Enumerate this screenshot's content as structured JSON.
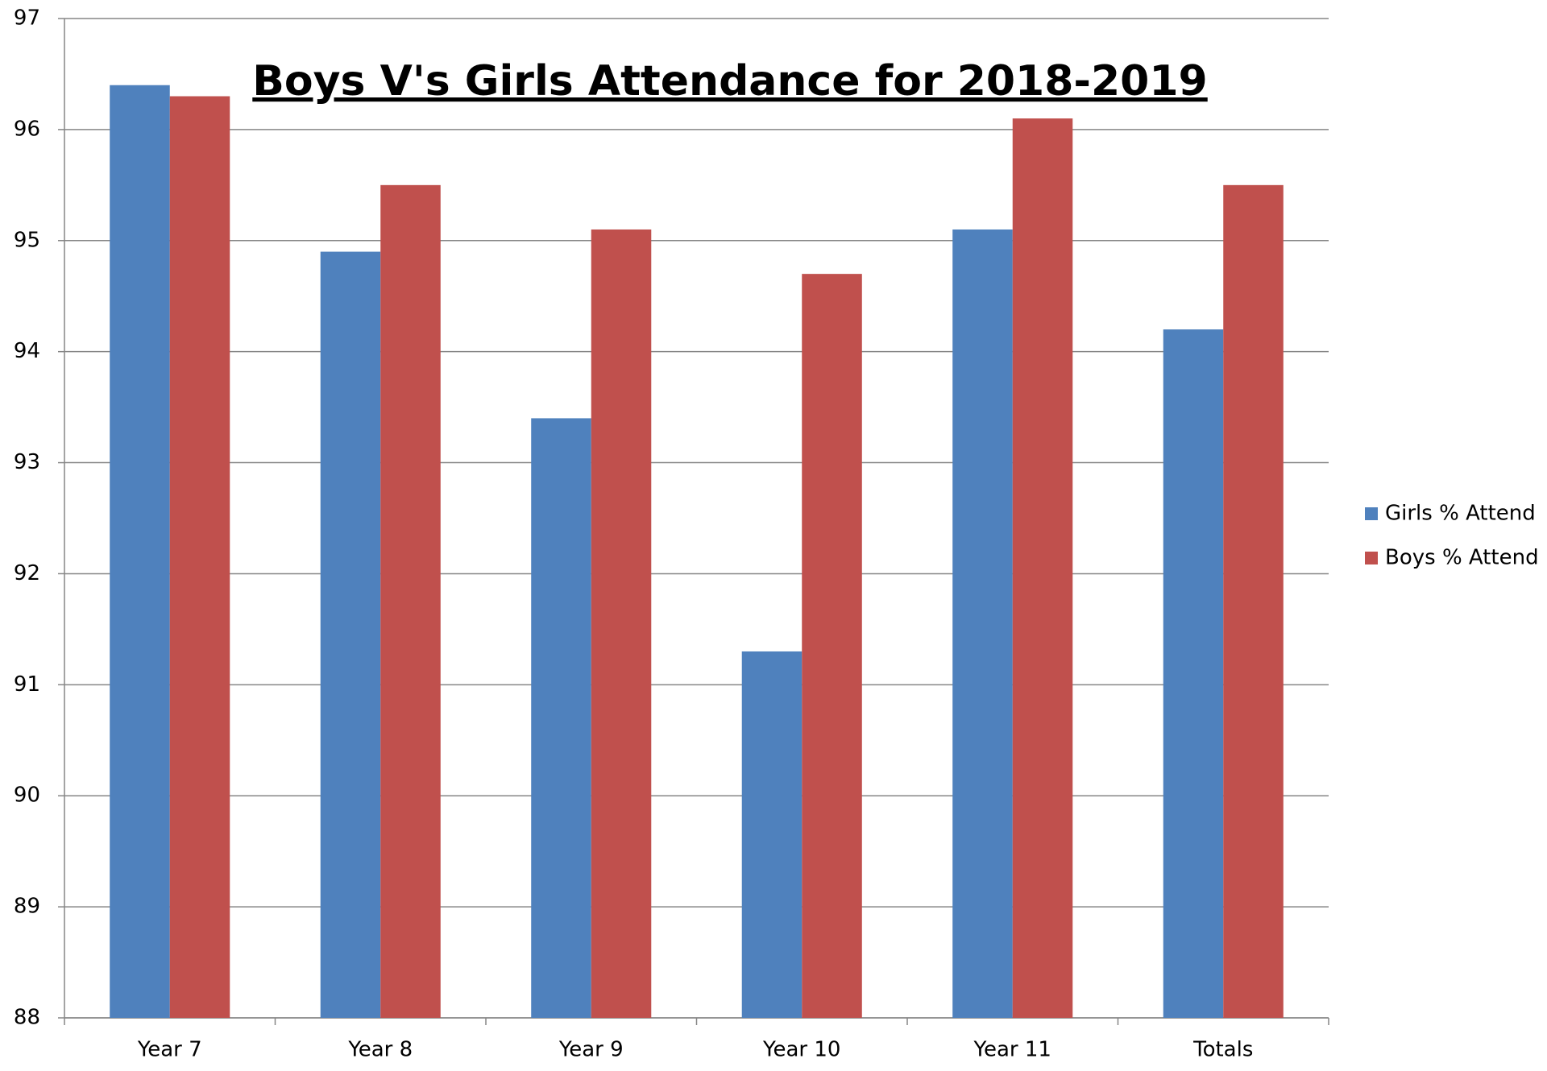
{
  "chart_data": {
    "type": "bar",
    "title": "Boys V's Girls Attendance for 2018-2019",
    "categories": [
      "Year 7",
      "Year 8",
      "Year 9",
      "Year 10",
      "Year 11",
      "Totals"
    ],
    "series": [
      {
        "name": "Girls % Attend",
        "color": "#4f81bd",
        "values": [
          96.4,
          94.9,
          93.4,
          91.3,
          95.1,
          94.2
        ]
      },
      {
        "name": "Boys % Attend",
        "color": "#c0504d",
        "values": [
          96.3,
          95.5,
          95.1,
          94.7,
          96.1,
          95.5
        ]
      }
    ],
    "ylim": [
      88,
      97
    ],
    "yticks": [
      88,
      89,
      90,
      91,
      92,
      93,
      94,
      95,
      96,
      97
    ],
    "grid": true,
    "legend": "right"
  }
}
